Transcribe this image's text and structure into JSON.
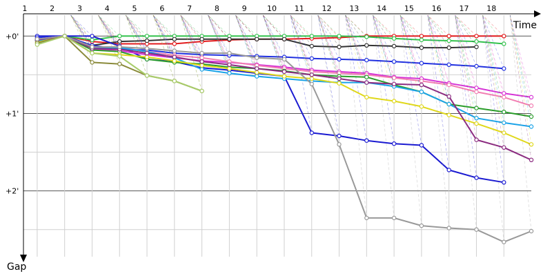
{
  "chart_data": {
    "type": "line",
    "x_axis_label": "Time",
    "y_axis_label": "Gap",
    "x_ticks": [
      "1",
      "2",
      "3",
      "4",
      "5",
      "6",
      "7",
      "8",
      "9",
      "10",
      "11",
      "12",
      "13",
      "14",
      "15",
      "16",
      "17",
      "18"
    ],
    "y_ticks": [
      {
        "value": 0,
        "label": "+0'"
      },
      {
        "value": 1,
        "label": "+1'"
      },
      {
        "value": 2,
        "label": "+2'"
      }
    ],
    "xlim": [
      0.5,
      19.2
    ],
    "ylim": [
      -0.27,
      2.85
    ],
    "y_axis_inverted": true,
    "grid": true,
    "legend": "none",
    "series": [
      {
        "color": "#e31a1c",
        "points": [
          [
            1,
            0.05
          ],
          [
            2,
            0
          ],
          [
            3,
            0.07
          ],
          [
            4,
            0.1
          ],
          [
            5,
            0.1
          ],
          [
            6,
            0.1
          ],
          [
            7,
            0.07
          ],
          [
            8,
            0.05
          ],
          [
            9,
            0.04
          ],
          [
            10,
            0.04
          ],
          [
            11,
            0.03
          ],
          [
            12,
            0.02
          ],
          [
            13,
            0
          ],
          [
            14,
            0
          ],
          [
            15,
            0
          ],
          [
            16,
            0
          ],
          [
            17,
            0
          ],
          [
            18,
            0
          ]
        ]
      },
      {
        "color": "#33c24d",
        "points": [
          [
            1,
            0.03
          ],
          [
            2,
            0
          ],
          [
            3,
            0.05
          ],
          [
            4,
            0
          ],
          [
            5,
            0
          ],
          [
            6,
            0
          ],
          [
            7,
            0
          ],
          [
            8,
            0
          ],
          [
            9,
            0
          ],
          [
            10,
            0
          ],
          [
            11,
            0
          ],
          [
            12,
            0
          ],
          [
            13,
            0.01
          ],
          [
            14,
            0.03
          ],
          [
            15,
            0.05
          ],
          [
            16,
            0.06
          ],
          [
            17,
            0.07
          ],
          [
            18,
            0.1
          ]
        ]
      },
      {
        "color": "#333333",
        "points": [
          [
            1,
            0.06
          ],
          [
            2,
            0
          ],
          [
            3,
            0.12
          ],
          [
            4,
            0.07
          ],
          [
            5,
            0.06
          ],
          [
            6,
            0.04
          ],
          [
            7,
            0.04
          ],
          [
            8,
            0.04
          ],
          [
            9,
            0.04
          ],
          [
            10,
            0.04
          ],
          [
            11,
            0.13
          ],
          [
            12,
            0.14
          ],
          [
            13,
            0.12
          ],
          [
            14,
            0.13
          ],
          [
            15,
            0.15
          ],
          [
            16,
            0.15
          ],
          [
            17,
            0.14
          ]
        ]
      },
      {
        "color": "#1a1ad1",
        "points": [
          [
            1,
            0
          ],
          [
            2,
            0
          ],
          [
            3,
            0
          ],
          [
            4,
            0.13
          ],
          [
            5,
            0.3
          ],
          [
            6,
            0.33
          ],
          [
            7,
            0.41
          ],
          [
            8,
            0.44
          ],
          [
            9,
            0.48
          ],
          [
            10,
            0.52
          ],
          [
            11,
            1.25
          ],
          [
            12,
            1.29
          ],
          [
            13,
            1.35
          ],
          [
            14,
            1.39
          ],
          [
            15,
            1.41
          ],
          [
            16,
            1.73
          ],
          [
            17,
            1.83
          ],
          [
            18,
            1.89
          ]
        ]
      },
      {
        "color": "#2030e0",
        "points": [
          [
            1,
            0.02
          ],
          [
            2,
            0
          ],
          [
            3,
            0.12
          ],
          [
            4,
            0.17
          ],
          [
            5,
            0.18
          ],
          [
            6,
            0.22
          ],
          [
            7,
            0.24
          ],
          [
            8,
            0.25
          ],
          [
            9,
            0.26
          ],
          [
            10,
            0.27
          ],
          [
            11,
            0.29
          ],
          [
            12,
            0.3
          ],
          [
            13,
            0.31
          ],
          [
            14,
            0.33
          ],
          [
            15,
            0.35
          ],
          [
            16,
            0.37
          ],
          [
            17,
            0.39
          ],
          [
            18,
            0.42
          ]
        ]
      },
      {
        "color": "#d633d6",
        "points": [
          [
            1,
            0.04
          ],
          [
            2,
            0
          ],
          [
            3,
            0.17
          ],
          [
            4,
            0.19
          ],
          [
            5,
            0.24
          ],
          [
            6,
            0.28
          ],
          [
            7,
            0.32
          ],
          [
            8,
            0.34
          ],
          [
            9,
            0.37
          ],
          [
            10,
            0.4
          ],
          [
            11,
            0.44
          ],
          [
            12,
            0.46
          ],
          [
            13,
            0.48
          ],
          [
            14,
            0.53
          ],
          [
            15,
            0.55
          ],
          [
            16,
            0.61
          ],
          [
            17,
            0.67
          ],
          [
            18,
            0.74
          ],
          [
            19,
            0.79
          ]
        ]
      },
      {
        "color": "#f27fb3",
        "points": [
          [
            1,
            0.04
          ],
          [
            2,
            0
          ],
          [
            3,
            0.14
          ],
          [
            4,
            0.14
          ],
          [
            5,
            0.2
          ],
          [
            6,
            0.25
          ],
          [
            7,
            0.28
          ],
          [
            8,
            0.33
          ],
          [
            9,
            0.38
          ],
          [
            10,
            0.42
          ],
          [
            11,
            0.46
          ],
          [
            12,
            0.48
          ],
          [
            13,
            0.5
          ],
          [
            14,
            0.54
          ],
          [
            15,
            0.58
          ],
          [
            16,
            0.63
          ],
          [
            17,
            0.72
          ],
          [
            18,
            0.79
          ],
          [
            19,
            0.9
          ]
        ]
      },
      {
        "color": "#2a9d2a",
        "points": [
          [
            1,
            0.05
          ],
          [
            2,
            0
          ],
          [
            3,
            0.18
          ],
          [
            4,
            0.2
          ],
          [
            5,
            0.3
          ],
          [
            6,
            0.34
          ],
          [
            7,
            0.36
          ],
          [
            8,
            0.4
          ],
          [
            9,
            0.42
          ],
          [
            10,
            0.45
          ],
          [
            11,
            0.5
          ],
          [
            12,
            0.52
          ],
          [
            13,
            0.53
          ],
          [
            14,
            0.63
          ],
          [
            15,
            0.72
          ],
          [
            16,
            0.88
          ],
          [
            17,
            0.93
          ],
          [
            18,
            0.98
          ],
          [
            19,
            1.04
          ]
        ]
      },
      {
        "color": "#1aa3e8",
        "points": [
          [
            1,
            0.06
          ],
          [
            2,
            0
          ],
          [
            3,
            0.16
          ],
          [
            4,
            0.15
          ],
          [
            5,
            0.2
          ],
          [
            6,
            0.28
          ],
          [
            7,
            0.43
          ],
          [
            8,
            0.48
          ],
          [
            9,
            0.52
          ],
          [
            10,
            0.55
          ],
          [
            11,
            0.58
          ],
          [
            12,
            0.6
          ],
          [
            13,
            0.6
          ],
          [
            14,
            0.65
          ],
          [
            15,
            0.72
          ],
          [
            16,
            0.88
          ],
          [
            17,
            1.06
          ],
          [
            18,
            1.12
          ],
          [
            19,
            1.17
          ]
        ]
      },
      {
        "color": "#e0d81a",
        "points": [
          [
            1,
            0.08
          ],
          [
            2,
            0
          ],
          [
            3,
            0.22
          ],
          [
            4,
            0.24
          ],
          [
            5,
            0.27
          ],
          [
            6,
            0.32
          ],
          [
            7,
            0.38
          ],
          [
            8,
            0.42
          ],
          [
            9,
            0.47
          ],
          [
            10,
            0.52
          ],
          [
            11,
            0.55
          ],
          [
            12,
            0.61
          ],
          [
            13,
            0.79
          ],
          [
            14,
            0.84
          ],
          [
            15,
            0.91
          ],
          [
            16,
            1.02
          ],
          [
            17,
            1.13
          ],
          [
            18,
            1.25
          ],
          [
            19,
            1.4
          ]
        ]
      },
      {
        "color": "#8b2b80",
        "points": [
          [
            1,
            0.05
          ],
          [
            2,
            0
          ],
          [
            3,
            0.16
          ],
          [
            4,
            0.17
          ],
          [
            5,
            0.22
          ],
          [
            6,
            0.27
          ],
          [
            7,
            0.33
          ],
          [
            8,
            0.37
          ],
          [
            9,
            0.42
          ],
          [
            10,
            0.46
          ],
          [
            11,
            0.5
          ],
          [
            12,
            0.55
          ],
          [
            13,
            0.6
          ],
          [
            14,
            0.62
          ],
          [
            15,
            0.63
          ],
          [
            16,
            0.78
          ],
          [
            17,
            1.34
          ],
          [
            18,
            1.44
          ],
          [
            19,
            1.6
          ]
        ]
      },
      {
        "color": "#999999",
        "points": [
          [
            1,
            0.04
          ],
          [
            2,
            0
          ],
          [
            3,
            0.14
          ],
          [
            4,
            0.14
          ],
          [
            5,
            0.16
          ],
          [
            6,
            0.19
          ],
          [
            7,
            0.22
          ],
          [
            8,
            0.22
          ],
          [
            9,
            0.28
          ],
          [
            10,
            0.3
          ],
          [
            11,
            0.62
          ],
          [
            12,
            1.4
          ],
          [
            13,
            2.35
          ],
          [
            14,
            2.35
          ],
          [
            15,
            2.45
          ],
          [
            16,
            2.48
          ],
          [
            17,
            2.5
          ],
          [
            18,
            2.66
          ],
          [
            19,
            2.52
          ]
        ]
      },
      {
        "color": "#8a8a3a",
        "points": [
          [
            1,
            0.09
          ],
          [
            2,
            0
          ],
          [
            3,
            0.34
          ],
          [
            4,
            0.36
          ],
          [
            5,
            0.51
          ],
          [
            6,
            0.58
          ],
          [
            7,
            0.71
          ]
        ]
      },
      {
        "color": "#a8cc6a",
        "points": [
          [
            1,
            0.11
          ],
          [
            2,
            0
          ],
          [
            3,
            0.22
          ],
          [
            4,
            0.26
          ],
          [
            5,
            0.51
          ],
          [
            6,
            0.58
          ],
          [
            7,
            0.71
          ]
        ]
      }
    ]
  }
}
